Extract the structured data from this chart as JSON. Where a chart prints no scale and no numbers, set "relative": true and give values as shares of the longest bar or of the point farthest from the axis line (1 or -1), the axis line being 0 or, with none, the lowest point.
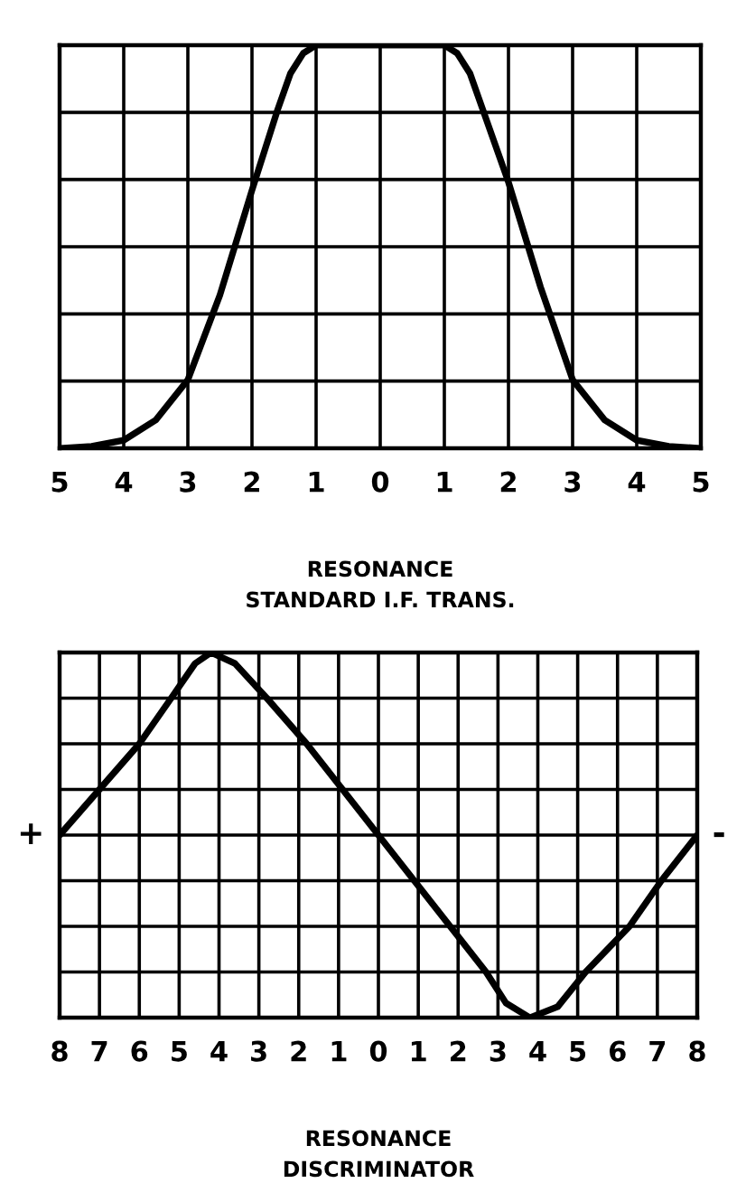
{
  "chart_data": [
    {
      "type": "line",
      "relative": true,
      "title": "RESONANCE",
      "subtitle": "STANDARD I.F. TRANS.",
      "color": "#000000",
      "grid": true,
      "line_style": "solid",
      "marker": "none",
      "xlim": [
        -5,
        5
      ],
      "xticks": [
        {
          "value": -5,
          "label": "5"
        },
        {
          "value": -4,
          "label": "4"
        },
        {
          "value": -3,
          "label": "3"
        },
        {
          "value": -2,
          "label": "2"
        },
        {
          "value": -1,
          "label": "1"
        },
        0,
        1,
        2,
        3,
        4,
        5
      ],
      "x": [
        -5,
        -4.5,
        -4,
        -3.5,
        -3,
        -2.5,
        -2,
        -1.6,
        -1.4,
        -1.2,
        -1,
        0,
        1,
        1.2,
        1.4,
        1.6,
        2,
        2.5,
        3,
        3.5,
        4,
        4.5,
        5
      ],
      "values": [
        0,
        0.005,
        0.02,
        0.07,
        0.17,
        0.38,
        0.64,
        0.84,
        0.93,
        0.98,
        1,
        1,
        1,
        0.98,
        0.93,
        0.84,
        0.66,
        0.4,
        0.17,
        0.07,
        0.02,
        0.005,
        0
      ]
    },
    {
      "type": "line",
      "relative": true,
      "title": "RESONANCE",
      "subtitle": "DISCRIMINATOR",
      "color": "#000000",
      "grid": true,
      "line_style": "solid",
      "marker": "none",
      "annotations": [
        {
          "text": "+",
          "x": -8,
          "y": 0.5
        },
        {
          "text": "-",
          "x": 8,
          "y": 0.5
        }
      ],
      "xlim": [
        -8,
        8
      ],
      "xticks": [
        {
          "value": -8,
          "label": "8"
        },
        {
          "value": -7,
          "label": "7"
        },
        {
          "value": -6,
          "label": "6"
        },
        {
          "value": -5,
          "label": "5"
        },
        {
          "value": -4,
          "label": "4"
        },
        {
          "value": -3,
          "label": "3"
        },
        {
          "value": -2,
          "label": "2"
        },
        {
          "value": -1,
          "label": "1"
        },
        0,
        1,
        2,
        3,
        4,
        5,
        6,
        7,
        8
      ],
      "x": [
        -8,
        -7,
        -6,
        -5.2,
        -4.6,
        -4.2,
        -3.6,
        -2.8,
        -1.8,
        -0.9,
        0,
        0.9,
        1.8,
        2.7,
        3.2,
        3.8,
        4.5,
        5.2,
        6.3,
        7.1,
        8
      ],
      "values": [
        0.5,
        0.625,
        0.75,
        0.875,
        0.97,
        1,
        0.97,
        0.875,
        0.75,
        0.625,
        0.5,
        0.375,
        0.25,
        0.125,
        0.04,
        0,
        0.03,
        0.125,
        0.25,
        0.375,
        0.5
      ]
    }
  ]
}
